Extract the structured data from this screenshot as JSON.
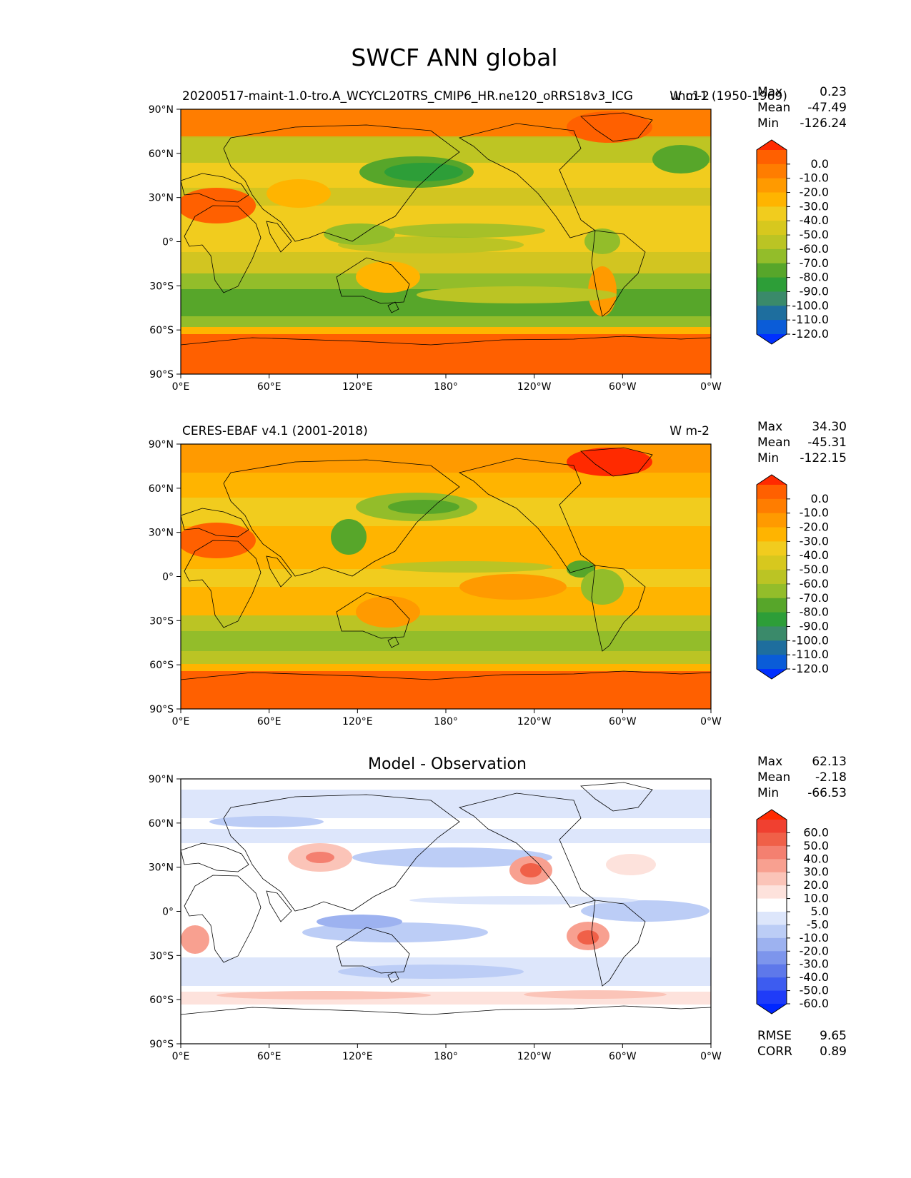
{
  "figure": {
    "title": "SWCF ANN global"
  },
  "axes": {
    "lat_ticks": [
      "90°N",
      "60°N",
      "30°N",
      "0°",
      "30°S",
      "60°S",
      "90°S"
    ],
    "lon_ticks": [
      "0°E",
      "60°E",
      "120°E",
      "180°",
      "120°W",
      "60°W",
      "0°W"
    ]
  },
  "panels": [
    {
      "title_left": "20200517-maint-1.0-tro.A_WCYCL20TRS_CMIP6_HR.ne120_oRRS18v3_ICG",
      "title_center": "",
      "title_right": "W m-2",
      "title_extra": "unc11 (1950-1969)",
      "stats": {
        "labels": [
          "Max",
          "Mean",
          "Min"
        ],
        "values": [
          "0.23",
          "-47.49",
          "-126.24"
        ]
      },
      "colorbar": {
        "labels": [
          "0.0",
          "-10.0",
          "-20.0",
          "-30.0",
          "-40.0",
          "-50.0",
          "-60.0",
          "-70.0",
          "-80.0",
          "-90.0",
          "-100.0",
          "-110.0",
          "-120.0"
        ],
        "colors": [
          "#ff2a00",
          "#ff6000",
          "#ff7d00",
          "#ff9a00",
          "#ffb400",
          "#f1cc1e",
          "#d7c81e",
          "#bbc424",
          "#93bd2a",
          "#57a62a",
          "#2d9e38",
          "#3a8a6a",
          "#1e6e9e",
          "#0a5cd8",
          "#0030ff"
        ]
      }
    },
    {
      "title_left": "CERES-EBAF v4.1 (2001-2018)",
      "title_center": "",
      "title_right": "W m-2",
      "title_extra": "",
      "stats": {
        "labels": [
          "Max",
          "Mean",
          "Min"
        ],
        "values": [
          "34.30",
          "-45.31",
          "-122.15"
        ]
      },
      "colorbar": {
        "labels": [
          "0.0",
          "-10.0",
          "-20.0",
          "-30.0",
          "-40.0",
          "-50.0",
          "-60.0",
          "-70.0",
          "-80.0",
          "-90.0",
          "-100.0",
          "-110.0",
          "-120.0"
        ],
        "colors": [
          "#ff2a00",
          "#ff6000",
          "#ff7d00",
          "#ff9a00",
          "#ffb400",
          "#f1cc1e",
          "#d7c81e",
          "#bbc424",
          "#93bd2a",
          "#57a62a",
          "#2d9e38",
          "#3a8a6a",
          "#1e6e9e",
          "#0a5cd8",
          "#0030ff"
        ]
      }
    },
    {
      "title_left": "",
      "title_center": "Model - Observation",
      "title_right": "",
      "title_extra": "",
      "stats": {
        "labels": [
          "Max",
          "Mean",
          "Min"
        ],
        "values": [
          "62.13",
          "-2.18",
          "-66.53"
        ]
      },
      "colorbar": {
        "labels": [
          "60.0",
          "50.0",
          "40.0",
          "30.0",
          "20.0",
          "10.0",
          "5.0",
          "-5.0",
          "-10.0",
          "-20.0",
          "-30.0",
          "-40.0",
          "-50.0",
          "-60.0"
        ],
        "colors": [
          "#ff2a00",
          "#f04030",
          "#f06048",
          "#f48070",
          "#f8a090",
          "#fbc4b8",
          "#fde2dc",
          "#ffffff",
          "#dde6fb",
          "#bccdf6",
          "#9db2f0",
          "#7d95ec",
          "#5e78ea",
          "#3d5cf0",
          "#1f3cf8",
          "#0026ff"
        ]
      },
      "metrics": {
        "labels": [
          "RMSE",
          "CORR"
        ],
        "values": [
          "9.65",
          "0.89"
        ]
      }
    }
  ]
}
